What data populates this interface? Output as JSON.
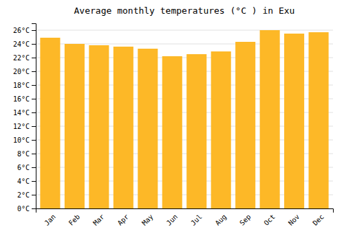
{
  "chart_data": {
    "type": "bar",
    "title": "Average monthly temperatures (°C ) in Exu",
    "categories": [
      "Jan",
      "Feb",
      "Mar",
      "Apr",
      "May",
      "Jun",
      "Jul",
      "Aug",
      "Sep",
      "Oct",
      "Nov",
      "Dec"
    ],
    "values": [
      24.9,
      24.0,
      23.8,
      23.6,
      23.3,
      22.2,
      22.5,
      22.9,
      24.3,
      26.0,
      25.5,
      25.7
    ],
    "color": "#FDB827",
    "ylim": [
      0,
      27
    ],
    "yticks": [
      {
        "value": 0,
        "label": "0°C"
      },
      {
        "value": 2,
        "label": "2°C"
      },
      {
        "value": 4,
        "label": "4°C"
      },
      {
        "value": 6,
        "label": "6°C"
      },
      {
        "value": 8,
        "label": "8°C"
      },
      {
        "value": 10,
        "label": "10°C"
      },
      {
        "value": 12,
        "label": "12°C"
      },
      {
        "value": 14,
        "label": "14°C"
      },
      {
        "value": 16,
        "label": "16°C"
      },
      {
        "value": 18,
        "label": "18°C"
      },
      {
        "value": 20,
        "label": "20°C"
      },
      {
        "value": 22,
        "label": "22°C"
      },
      {
        "value": 24,
        "label": "24°C"
      },
      {
        "value": 26,
        "label": "26°C"
      }
    ],
    "grid": true
  }
}
